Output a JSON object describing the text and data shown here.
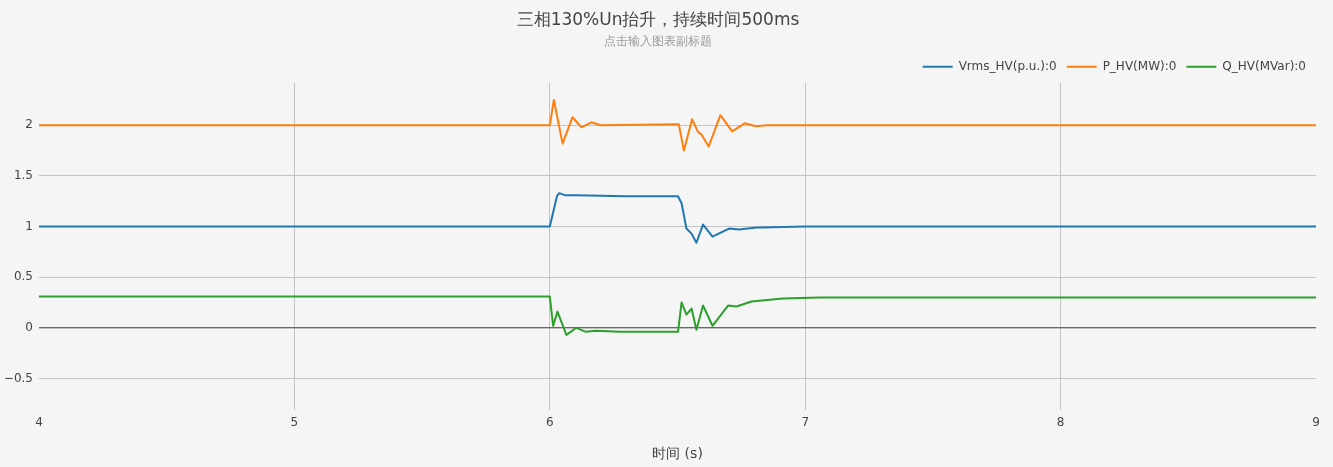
{
  "chart_data": {
    "type": "line",
    "title": "三相130%Un抬升，持续时间500ms",
    "subtitle": "点击输入图表副标题",
    "xlabel": "时间 (s)",
    "xlim": [
      4,
      9
    ],
    "xticks": [
      4,
      5,
      6,
      7,
      8,
      9
    ],
    "ylim": [
      -0.81,
      2.42
    ],
    "yticks": [
      {
        "value": -0.5,
        "label": "−0.5"
      },
      0,
      0.5,
      1,
      1.5,
      2
    ],
    "grid": true,
    "legend": "top right",
    "marker": "none",
    "line_style": "solid",
    "ref_lines": [
      {
        "axis": "y",
        "value": 0,
        "color": "#444444"
      }
    ],
    "series": [
      {
        "name": "Vrms_HV(p.u.):0",
        "color": "#1f77b4",
        "x": [
          4,
          6.0,
          6.028,
          6.037,
          6.059,
          6.1,
          6.3,
          6.502,
          6.516,
          6.535,
          6.555,
          6.574,
          6.6,
          6.637,
          6.702,
          6.741,
          6.809,
          7.0,
          9
        ],
        "values": [
          1.0,
          1.0,
          1.3,
          1.33,
          1.31,
          1.31,
          1.3,
          1.3,
          1.23,
          0.98,
          0.93,
          0.84,
          1.02,
          0.9,
          0.98,
          0.97,
          0.99,
          1.0,
          1.0
        ]
      },
      {
        "name": "P_HV(MW):0",
        "color": "#ff7f0e",
        "x": [
          4,
          6.0,
          6.016,
          6.05,
          6.089,
          6.124,
          6.163,
          6.2,
          6.505,
          6.525,
          6.557,
          6.581,
          6.594,
          6.622,
          6.668,
          6.714,
          6.763,
          6.808,
          6.85,
          9
        ],
        "values": [
          2.0,
          2.0,
          2.25,
          1.82,
          2.08,
          1.98,
          2.03,
          2.0,
          2.01,
          1.75,
          2.06,
          1.93,
          1.91,
          1.79,
          2.1,
          1.94,
          2.02,
          1.99,
          2.0,
          2.0
        ]
      },
      {
        "name": "Q_HV(MVar):0",
        "color": "#2ca02c",
        "x": [
          4,
          6.0,
          6.013,
          6.03,
          6.065,
          6.104,
          6.141,
          6.18,
          6.274,
          6.502,
          6.516,
          6.535,
          6.555,
          6.574,
          6.6,
          6.637,
          6.698,
          6.731,
          6.79,
          6.913,
          7.057,
          9
        ],
        "values": [
          0.31,
          0.31,
          0.02,
          0.16,
          -0.07,
          0.0,
          -0.04,
          -0.03,
          -0.04,
          -0.04,
          0.25,
          0.13,
          0.19,
          -0.02,
          0.22,
          0.02,
          0.22,
          0.21,
          0.26,
          0.29,
          0.3,
          0.3
        ]
      }
    ]
  }
}
